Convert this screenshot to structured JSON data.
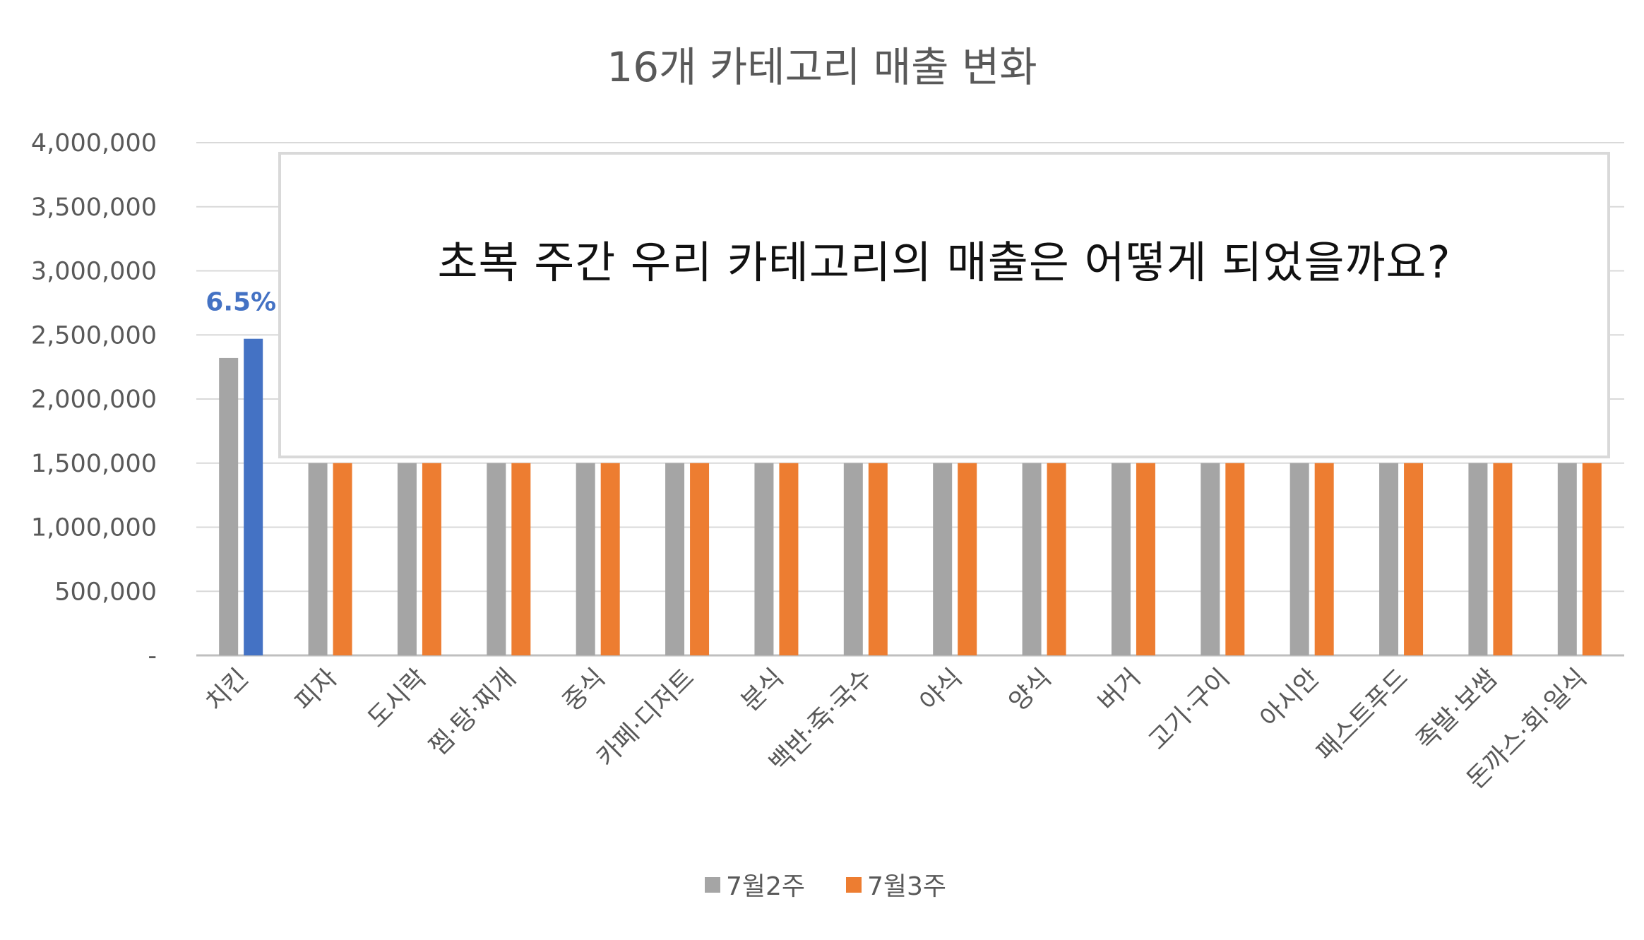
{
  "chart_data": {
    "type": "bar",
    "title": "16개 카테고리 매출 변화",
    "xlabel": "",
    "ylabel": "",
    "ylim": [
      0,
      4000000
    ],
    "yticks": [
      0,
      500000,
      1000000,
      1500000,
      2000000,
      2500000,
      3000000,
      3500000,
      4000000
    ],
    "ytick_labels": [
      "-",
      "500,000",
      "1,000,000",
      "1,500,000",
      "2,000,000",
      "2,500,000",
      "3,000,000",
      "3,500,000",
      "4,000,000"
    ],
    "grid": true,
    "legend_position": "bottom",
    "categories": [
      "치킨",
      "피자",
      "도시락",
      "찜·탕·찌개",
      "중식",
      "카페·디저트",
      "분식",
      "백반·죽·국수",
      "야식",
      "양식",
      "버거",
      "고기·구이",
      "아시안",
      "패스트푸드",
      "족발·보쌈",
      "돈까스·회·일식"
    ],
    "series": [
      {
        "name": "7월2주",
        "color": "#A5A5A5",
        "values": [
          2320000,
          1500000,
          1500000,
          1500000,
          1500000,
          1500000,
          1500000,
          1500000,
          1500000,
          1500000,
          1500000,
          1500000,
          1500000,
          1500000,
          1500000,
          1500000
        ]
      },
      {
        "name": "7월3주",
        "color": "#ED7D31",
        "highlight_color": "#4472C4",
        "highlight_index": 0,
        "values": [
          2470000,
          1500000,
          1500000,
          1500000,
          1500000,
          1500000,
          1500000,
          1500000,
          1500000,
          1500000,
          1500000,
          1500000,
          1500000,
          1500000,
          1500000,
          1500000
        ]
      }
    ],
    "annotations": [
      {
        "category": "치킨",
        "text": "6.5%"
      }
    ]
  },
  "overlay": {
    "text": "초복 주간 우리 카테고리의 매출은 어떻게 되었을까요?"
  }
}
